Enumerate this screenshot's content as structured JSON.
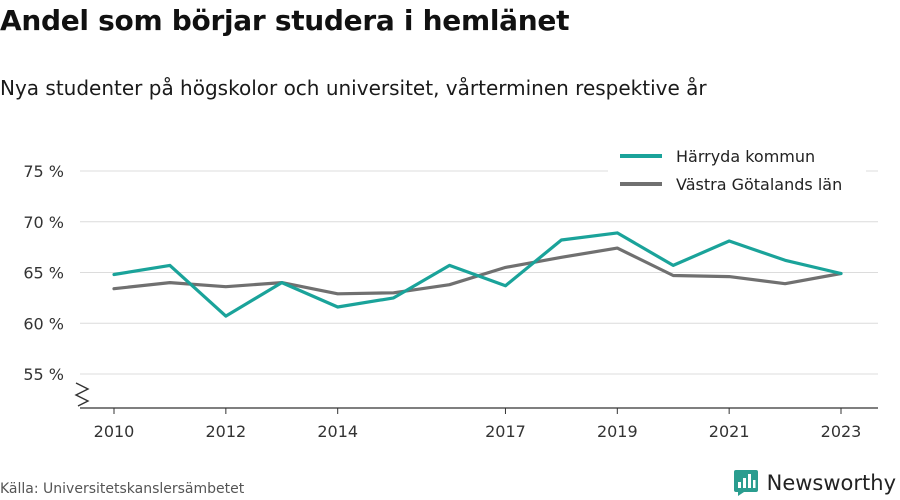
{
  "title": "Andel som börjar studera i hemlänet",
  "subtitle": "Nya studenter på högskolor och universitet, vårterminen respektive år",
  "source": "Källa: Universitetskanslersämbetet",
  "brand": {
    "name": "Newsworthy",
    "icon": "bar-chart-icon",
    "color": "#2a9d8f"
  },
  "chart_data": {
    "type": "line",
    "title": "Andel som börjar studera i hemlänet",
    "subtitle": "Nya studenter på högskolor och universitet, vårterminen respektive år",
    "xlabel": "",
    "ylabel": "",
    "x": [
      2010,
      2011,
      2012,
      2013,
      2014,
      2015,
      2016,
      2017,
      2018,
      2019,
      2020,
      2021,
      2022,
      2023
    ],
    "x_ticks": [
      2010,
      2012,
      2014,
      2017,
      2019,
      2021,
      2023
    ],
    "y_ticks": [
      55,
      60,
      65,
      70,
      75
    ],
    "y_tick_labels": [
      "55 %",
      "60 %",
      "65 %",
      "70 %",
      "75 %"
    ],
    "ylim": [
      52.5,
      75
    ],
    "xlim": [
      2010,
      2023
    ],
    "y_axis_break": true,
    "grid": "horizontal",
    "legend_position": "top-right",
    "series": [
      {
        "name": "Härryda kommun",
        "color": "#1aa39a",
        "values": [
          64.8,
          65.7,
          60.7,
          64.0,
          61.6,
          62.5,
          65.7,
          63.7,
          68.2,
          68.9,
          65.7,
          68.1,
          66.2,
          64.9
        ]
      },
      {
        "name": "Västra Götalands län",
        "color": "#707070",
        "values": [
          63.4,
          64.0,
          63.6,
          64.0,
          62.9,
          63.0,
          63.8,
          65.5,
          66.5,
          67.4,
          64.7,
          64.6,
          63.9,
          64.9
        ]
      }
    ]
  }
}
